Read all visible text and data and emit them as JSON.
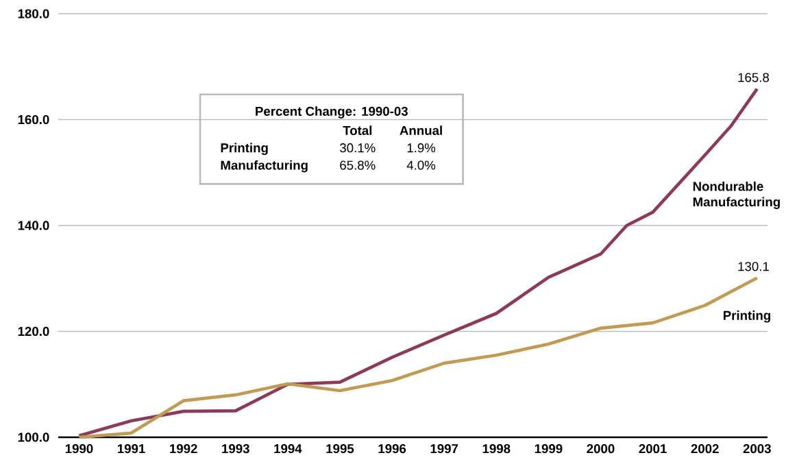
{
  "chart_data": {
    "type": "line",
    "xlim": [
      1989.6,
      2003.2
    ],
    "xticks": [
      1990,
      1991,
      1992,
      1993,
      1994,
      1995,
      1996,
      1997,
      1998,
      1999,
      2000,
      2001,
      2002,
      2003
    ],
    "ylim": [
      100,
      180
    ],
    "yticks": [
      {
        "value": 100,
        "label": "100.0"
      },
      {
        "value": 120,
        "label": "120.0"
      },
      {
        "value": 140,
        "label": "140.0"
      },
      {
        "value": 160,
        "label": "160.0"
      },
      {
        "value": 180,
        "label": "180.0"
      }
    ],
    "grid": "y",
    "legend": false,
    "marker": "none",
    "line_style": "solid",
    "series": [
      {
        "name": "Nondurable Manufacturing",
        "color": "#8b3a5a",
        "x": [
          1990,
          1991,
          1992,
          1993,
          1994,
          1995,
          1996,
          1997,
          1998,
          1999,
          2000,
          2000.5,
          2001,
          2002,
          2002.5,
          2003
        ],
        "values": [
          100.3,
          103.1,
          104.9,
          105.0,
          110.0,
          110.4,
          115.1,
          119.3,
          123.4,
          130.2,
          134.6,
          140.0,
          142.5,
          153.3,
          158.8,
          165.8
        ]
      },
      {
        "name": "Printing",
        "color": "#c19a55",
        "x": [
          1990,
          1991,
          1992,
          1993,
          1994,
          1995,
          1996,
          1997,
          1998,
          1999,
          2000,
          2001,
          2002,
          2003
        ],
        "values": [
          100,
          100.8,
          106.9,
          108.0,
          110.1,
          108.8,
          110.7,
          114.0,
          115.5,
          117.6,
          120.6,
          121.6,
          124.9,
          130.1
        ]
      }
    ],
    "annotations": [
      {
        "text": "165.8",
        "x": 2003,
        "y": 165.8
      },
      {
        "text": "130.1",
        "x": 2003,
        "y": 130.1
      },
      "Percent Change: 1990-03",
      "Total",
      "Annual",
      "Printing",
      "30.1%",
      "1.9%",
      "Manufacturing",
      "65.8%",
      "4.0%"
    ]
  }
}
